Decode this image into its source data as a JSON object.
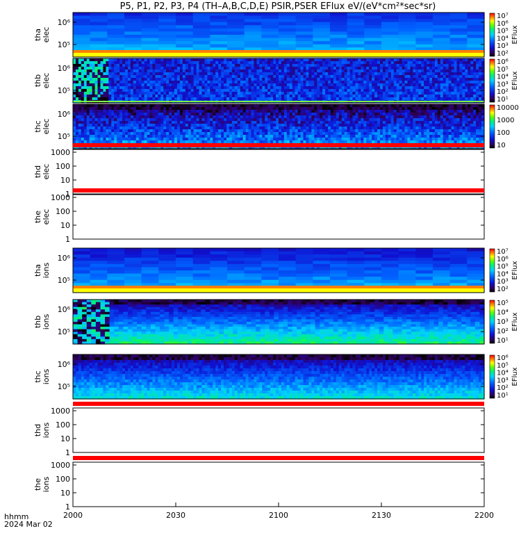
{
  "title": "P5, P1, P2, P3, P4 (TH–A,B,C,D,E) PSIR,PSER EFlux eV/(eV*cm²*sec*sr)",
  "footer": {
    "time_label": "hhmm",
    "date_label": "2024 Mar 02"
  },
  "chart_data": {
    "type": "heatmap",
    "title": "P5, P1, P2, P3, P4 (TH–A,B,C,D,E) PSIR,PSER EFlux eV/(eV*cm²*sec*sr)",
    "x_tick_labels": [
      "2000",
      "2030",
      "2100",
      "2130",
      "2200"
    ],
    "panels": [
      {
        "probe": "tha",
        "species": "elec",
        "kind": "spectrogram",
        "y_tick_labels": [
          "10⁶",
          "10⁵"
        ],
        "colorbar": {
          "label": "EFlux",
          "tick_labels": [
            "10⁷",
            "10⁶",
            "10⁵",
            "10⁴",
            "10³",
            "10²"
          ]
        }
      },
      {
        "probe": "thb",
        "species": "elec",
        "kind": "spectrogram",
        "y_tick_labels": [
          "10⁶",
          "10⁵"
        ],
        "colorbar": {
          "label": "EFlux",
          "tick_labels": [
            "10⁶",
            "10⁵",
            "10⁴",
            "10³",
            "10²",
            "10¹"
          ]
        }
      },
      {
        "probe": "thc",
        "species": "elec",
        "kind": "spectrogram",
        "y_tick_labels": [
          "10⁶",
          "10⁵"
        ],
        "colorbar": {
          "label": "",
          "tick_labels": [
            "10000",
            "1000",
            "100",
            "10"
          ]
        }
      },
      {
        "probe": "thd",
        "species": "elec",
        "kind": "empty",
        "y_tick_labels": [
          "1000",
          "100",
          "10",
          "1"
        ]
      },
      {
        "probe": "the",
        "species": "elec",
        "kind": "empty",
        "y_tick_labels": [
          "1000",
          "100",
          "10",
          "1"
        ]
      },
      {
        "probe": "tha",
        "species": "ions",
        "kind": "spectrogram",
        "y_tick_labels": [
          "10⁶",
          "10⁵"
        ],
        "colorbar": {
          "label": "EFlux",
          "tick_labels": [
            "10⁷",
            "10⁶",
            "10⁵",
            "10⁴",
            "10³",
            "10²"
          ]
        }
      },
      {
        "probe": "thb",
        "species": "ions",
        "kind": "spectrogram",
        "y_tick_labels": [
          "10⁶",
          "10⁵"
        ],
        "colorbar": {
          "label": "EFlux",
          "tick_labels": [
            "10⁵",
            "10⁴",
            "10³",
            "10²",
            "10¹"
          ]
        }
      },
      {
        "probe": "thc",
        "species": "ions",
        "kind": "spectrogram",
        "y_tick_labels": [
          "10⁶",
          "10⁵"
        ],
        "colorbar": {
          "label": "EFlux",
          "tick_labels": [
            "10⁶",
            "10⁵",
            "10⁴",
            "10³",
            "10²",
            "10¹"
          ]
        }
      },
      {
        "probe": "thd",
        "species": "ions",
        "kind": "empty",
        "y_tick_labels": [
          "1000",
          "100",
          "10",
          "1"
        ]
      },
      {
        "probe": "the",
        "species": "ions",
        "kind": "empty",
        "y_tick_labels": [
          "1000",
          "100",
          "10",
          "1"
        ]
      }
    ]
  }
}
